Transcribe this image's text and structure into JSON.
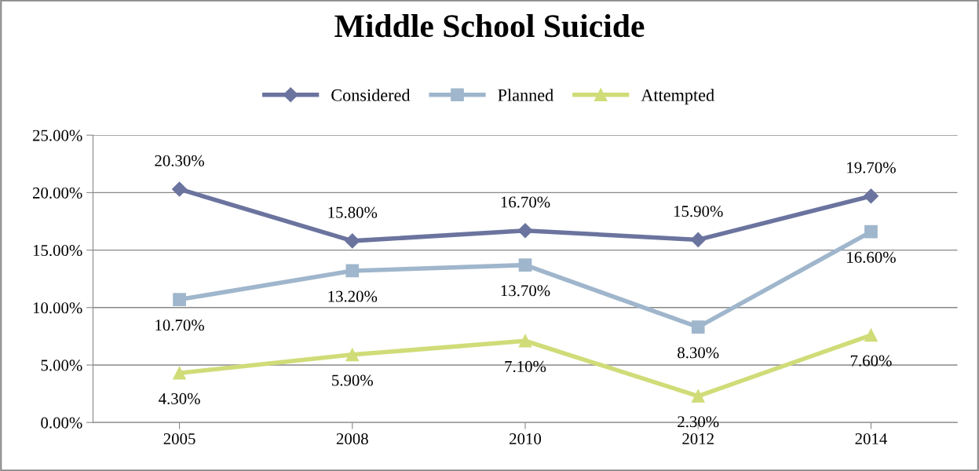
{
  "chart_data": {
    "type": "line",
    "title": "Middle School Suicide",
    "categories": [
      "2005",
      "2008",
      "2010",
      "2012",
      "2014"
    ],
    "series": [
      {
        "name": "Considered",
        "color": "#6b749e",
        "values": [
          20.3,
          15.8,
          16.7,
          15.9,
          19.7
        ],
        "value_labels": [
          "20.30%",
          "15.80%",
          "16.70%",
          "15.90%",
          "19.70%"
        ],
        "marker": "diamond"
      },
      {
        "name": "Planned",
        "color": "#9fb6cc",
        "values": [
          10.7,
          13.2,
          13.7,
          8.3,
          16.6
        ],
        "value_labels": [
          "10.70%",
          "13.20%",
          "13.70%",
          "8.30%",
          "16.60%"
        ],
        "marker": "square"
      },
      {
        "name": "Attempted",
        "color": "#d0dc78",
        "values": [
          4.3,
          5.9,
          7.1,
          2.3,
          7.6
        ],
        "value_labels": [
          "4.30%",
          "5.90%",
          "7.10%",
          "2.30%",
          "7.60%"
        ],
        "marker": "triangle"
      }
    ],
    "ylim": [
      0,
      25
    ],
    "yticks": [
      {
        "value": 0,
        "label": "0.00%"
      },
      {
        "value": 5,
        "label": "5.00%"
      },
      {
        "value": 10,
        "label": "10.00%"
      },
      {
        "value": 15,
        "label": "15.00%"
      },
      {
        "value": 20,
        "label": "20.00%"
      },
      {
        "value": 25,
        "label": "25.00%"
      }
    ],
    "grid": "y",
    "legend": "top",
    "line_style": "solid"
  }
}
